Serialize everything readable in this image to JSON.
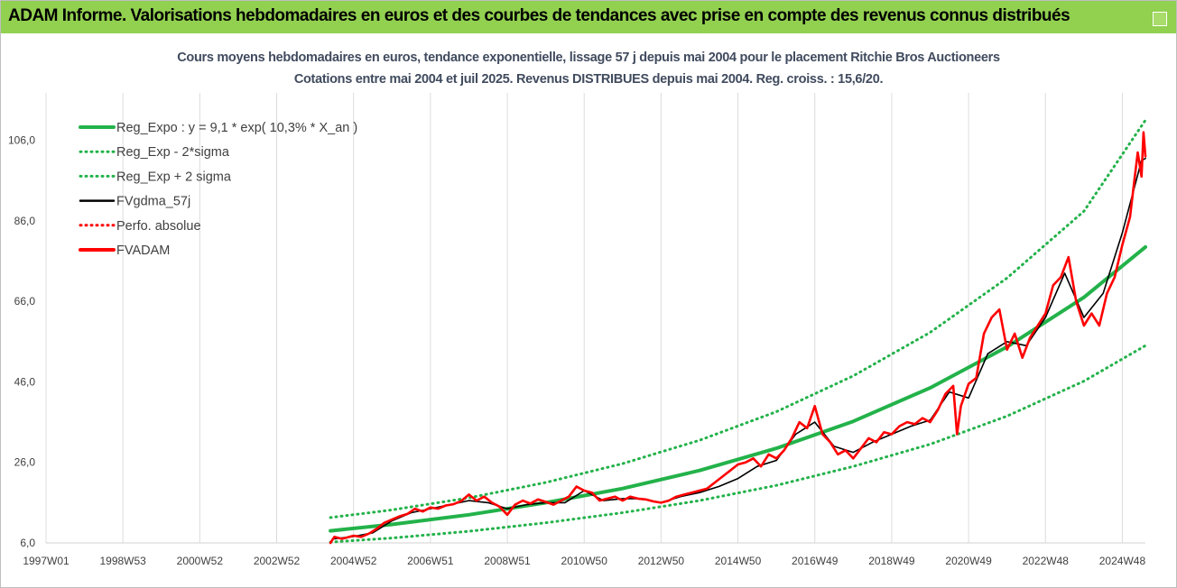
{
  "banner": {
    "title": "ADAM Informe. Valorisations hebdomadaires en euros et des courbes de tendances avec prise en compte des revenus connus distribués"
  },
  "chart_data": {
    "type": "line",
    "title": "Cours moyens hebdomadaires en euros, tendance exponentielle, lissage 57 j depuis mai 2004 pour le placement Ritchie Bros Auctioneers",
    "subtitle": "Cotations entre mai 2004 et juil 2025. Revenus DISTRIBUES depuis mai 2004. Reg. croiss. : 15,6/20.",
    "xlabel": "",
    "ylabel": "",
    "x_range": [
      1997.0,
      2025.6
    ],
    "y_range": [
      6.0,
      116.0
    ],
    "y_ticks": [
      "6,0",
      "26,0",
      "46,0",
      "66,0",
      "86,0",
      "106,0"
    ],
    "x_ticks": [
      {
        "label": "1997W01",
        "x": 1997.0
      },
      {
        "label": "1998W53",
        "x": 1999.0
      },
      {
        "label": "2000W52",
        "x": 2001.0
      },
      {
        "label": "2002W52",
        "x": 2003.0
      },
      {
        "label": "2004W52",
        "x": 2005.0
      },
      {
        "label": "2006W51",
        "x": 2007.0
      },
      {
        "label": "2008W51",
        "x": 2009.0
      },
      {
        "label": "2010W50",
        "x": 2011.0
      },
      {
        "label": "2012W50",
        "x": 2013.0
      },
      {
        "label": "2014W50",
        "x": 2015.0
      },
      {
        "label": "2016W49",
        "x": 2017.0
      },
      {
        "label": "2018W49",
        "x": 2019.0
      },
      {
        "label": "2020W49",
        "x": 2021.0
      },
      {
        "label": "2022W48",
        "x": 2023.0
      },
      {
        "label": "2024W48",
        "x": 2025.0
      }
    ],
    "grid": "vertical",
    "legend_position": "top-left",
    "series": [
      {
        "name": "Reg_Expo : y = 9,1 * exp( 10,3% *  X_an )",
        "color": "#23b24a",
        "style": "solid-thick",
        "points": [
          [
            2004.4,
            9.0
          ],
          [
            2006.0,
            10.6
          ],
          [
            2008.0,
            13.0
          ],
          [
            2010.0,
            16.0
          ],
          [
            2012.0,
            19.5
          ],
          [
            2014.0,
            24.0
          ],
          [
            2016.0,
            29.5
          ],
          [
            2018.0,
            36.2
          ],
          [
            2020.0,
            44.5
          ],
          [
            2022.0,
            54.7
          ],
          [
            2024.0,
            67.0
          ],
          [
            2025.6,
            79.5
          ]
        ]
      },
      {
        "name": "Reg_Exp - 2*sigma",
        "color": "#23b24a",
        "style": "dotted",
        "points": [
          [
            2004.4,
            6.2
          ],
          [
            2006.0,
            7.2
          ],
          [
            2008.0,
            8.9
          ],
          [
            2010.0,
            11.0
          ],
          [
            2012.0,
            13.5
          ],
          [
            2014.0,
            16.5
          ],
          [
            2016.0,
            20.3
          ],
          [
            2018.0,
            25.0
          ],
          [
            2020.0,
            30.5
          ],
          [
            2022.0,
            37.5
          ],
          [
            2024.0,
            46.2
          ],
          [
            2025.6,
            55.0
          ]
        ]
      },
      {
        "name": "Reg_Exp + 2 sigma",
        "color": "#23b24a",
        "style": "dotted",
        "points": [
          [
            2004.4,
            12.3
          ],
          [
            2006.0,
            14.2
          ],
          [
            2008.0,
            17.2
          ],
          [
            2010.0,
            21.0
          ],
          [
            2012.0,
            25.7
          ],
          [
            2014.0,
            31.5
          ],
          [
            2016.0,
            38.6
          ],
          [
            2018.0,
            47.5
          ],
          [
            2020.0,
            58.3
          ],
          [
            2022.0,
            71.8
          ],
          [
            2024.0,
            88.4
          ],
          [
            2025.6,
            111.0
          ]
        ]
      },
      {
        "name": "FVgdma_57j",
        "color": "#000000",
        "style": "solid",
        "points": [
          [
            2004.5,
            7.0
          ],
          [
            2005.0,
            7.6
          ],
          [
            2005.5,
            8.5
          ],
          [
            2006.0,
            11.5
          ],
          [
            2006.5,
            13.5
          ],
          [
            2007.0,
            14.5
          ],
          [
            2007.5,
            15.5
          ],
          [
            2008.0,
            16.5
          ],
          [
            2008.5,
            16.0
          ],
          [
            2009.0,
            14.5
          ],
          [
            2009.5,
            15.5
          ],
          [
            2010.0,
            16.0
          ],
          [
            2010.5,
            16.0
          ],
          [
            2011.0,
            19.0
          ],
          [
            2011.5,
            16.5
          ],
          [
            2012.0,
            17.0
          ],
          [
            2012.5,
            17.0
          ],
          [
            2013.0,
            16.0
          ],
          [
            2013.5,
            17.5
          ],
          [
            2014.0,
            18.5
          ],
          [
            2014.5,
            20.0
          ],
          [
            2015.0,
            22.0
          ],
          [
            2015.5,
            25.0
          ],
          [
            2016.0,
            26.5
          ],
          [
            2016.5,
            33.0
          ],
          [
            2017.0,
            36.0
          ],
          [
            2017.5,
            30.0
          ],
          [
            2018.0,
            28.5
          ],
          [
            2018.5,
            31.0
          ],
          [
            2019.0,
            33.0
          ],
          [
            2019.5,
            35.0
          ],
          [
            2020.0,
            36.5
          ],
          [
            2020.5,
            43.5
          ],
          [
            2021.0,
            42.0
          ],
          [
            2021.5,
            53.0
          ],
          [
            2022.0,
            56.0
          ],
          [
            2022.5,
            55.0
          ],
          [
            2023.0,
            62.0
          ],
          [
            2023.5,
            73.0
          ],
          [
            2024.0,
            62.0
          ],
          [
            2024.5,
            68.0
          ],
          [
            2025.0,
            83.0
          ],
          [
            2025.5,
            101.0
          ],
          [
            2025.6,
            101.5
          ]
        ]
      },
      {
        "name": "Perfo. absolue",
        "color": "#ff0000",
        "style": "dotted",
        "points": []
      },
      {
        "name": "FVADAM",
        "color": "#ff0000",
        "style": "solid-thick",
        "points": [
          [
            2004.4,
            6.0
          ],
          [
            2004.5,
            7.5
          ],
          [
            2004.7,
            7.0
          ],
          [
            2005.0,
            7.8
          ],
          [
            2005.2,
            7.5
          ],
          [
            2005.4,
            8.3
          ],
          [
            2005.6,
            9.5
          ],
          [
            2005.8,
            11.0
          ],
          [
            2006.0,
            11.8
          ],
          [
            2006.2,
            12.6
          ],
          [
            2006.4,
            13.2
          ],
          [
            2006.6,
            14.5
          ],
          [
            2006.8,
            13.8
          ],
          [
            2007.0,
            14.8
          ],
          [
            2007.2,
            14.5
          ],
          [
            2007.4,
            15.3
          ],
          [
            2007.6,
            15.6
          ],
          [
            2007.8,
            16.4
          ],
          [
            2008.0,
            18.0
          ],
          [
            2008.2,
            16.5
          ],
          [
            2008.4,
            17.5
          ],
          [
            2008.6,
            16.0
          ],
          [
            2008.8,
            15.0
          ],
          [
            2009.0,
            13.0
          ],
          [
            2009.2,
            15.5
          ],
          [
            2009.4,
            16.5
          ],
          [
            2009.6,
            15.8
          ],
          [
            2009.8,
            16.8
          ],
          [
            2010.0,
            16.2
          ],
          [
            2010.2,
            15.5
          ],
          [
            2010.4,
            16.5
          ],
          [
            2010.6,
            17.5
          ],
          [
            2010.8,
            20.0
          ],
          [
            2011.0,
            19.0
          ],
          [
            2011.2,
            18.5
          ],
          [
            2011.4,
            16.5
          ],
          [
            2011.6,
            17.0
          ],
          [
            2011.8,
            17.5
          ],
          [
            2012.0,
            16.5
          ],
          [
            2012.2,
            17.5
          ],
          [
            2012.4,
            17.0
          ],
          [
            2012.6,
            16.8
          ],
          [
            2012.8,
            16.3
          ],
          [
            2013.0,
            16.0
          ],
          [
            2013.2,
            16.5
          ],
          [
            2013.4,
            17.5
          ],
          [
            2013.6,
            18.0
          ],
          [
            2013.8,
            18.5
          ],
          [
            2014.0,
            19.0
          ],
          [
            2014.2,
            19.5
          ],
          [
            2014.4,
            21.0
          ],
          [
            2014.6,
            22.5
          ],
          [
            2014.8,
            24.0
          ],
          [
            2015.0,
            25.5
          ],
          [
            2015.2,
            26.0
          ],
          [
            2015.4,
            27.0
          ],
          [
            2015.6,
            25.0
          ],
          [
            2015.8,
            28.0
          ],
          [
            2016.0,
            27.0
          ],
          [
            2016.2,
            29.0
          ],
          [
            2016.4,
            32.0
          ],
          [
            2016.6,
            36.0
          ],
          [
            2016.8,
            34.5
          ],
          [
            2017.0,
            40.0
          ],
          [
            2017.2,
            33.0
          ],
          [
            2017.4,
            31.0
          ],
          [
            2017.6,
            28.0
          ],
          [
            2017.8,
            29.0
          ],
          [
            2018.0,
            27.0
          ],
          [
            2018.2,
            29.5
          ],
          [
            2018.4,
            32.0
          ],
          [
            2018.6,
            31.0
          ],
          [
            2018.8,
            33.5
          ],
          [
            2019.0,
            33.0
          ],
          [
            2019.2,
            35.0
          ],
          [
            2019.4,
            36.0
          ],
          [
            2019.6,
            35.5
          ],
          [
            2019.8,
            37.0
          ],
          [
            2020.0,
            36.0
          ],
          [
            2020.2,
            39.0
          ],
          [
            2020.4,
            43.0
          ],
          [
            2020.6,
            45.0
          ],
          [
            2020.7,
            33.0
          ],
          [
            2020.8,
            40.0
          ],
          [
            2021.0,
            45.5
          ],
          [
            2021.2,
            47.0
          ],
          [
            2021.4,
            58.0
          ],
          [
            2021.6,
            62.0
          ],
          [
            2021.8,
            64.0
          ],
          [
            2022.0,
            54.0
          ],
          [
            2022.2,
            58.0
          ],
          [
            2022.4,
            52.0
          ],
          [
            2022.6,
            57.0
          ],
          [
            2022.8,
            60.0
          ],
          [
            2023.0,
            63.0
          ],
          [
            2023.2,
            70.0
          ],
          [
            2023.4,
            72.0
          ],
          [
            2023.6,
            77.0
          ],
          [
            2023.8,
            66.0
          ],
          [
            2024.0,
            60.0
          ],
          [
            2024.2,
            63.0
          ],
          [
            2024.4,
            60.0
          ],
          [
            2024.6,
            68.0
          ],
          [
            2024.8,
            72.0
          ],
          [
            2025.0,
            80.0
          ],
          [
            2025.2,
            87.0
          ],
          [
            2025.3,
            95.0
          ],
          [
            2025.4,
            103.0
          ],
          [
            2025.5,
            97.0
          ],
          [
            2025.55,
            108.0
          ],
          [
            2025.6,
            102.0
          ]
        ]
      }
    ]
  }
}
